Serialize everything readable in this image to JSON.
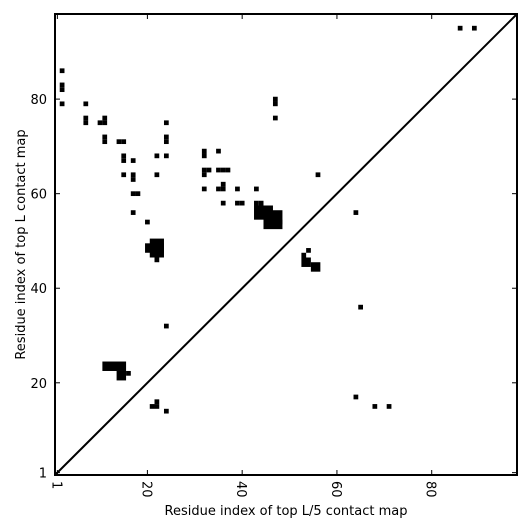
{
  "chart_data": {
    "type": "scatter",
    "title": "",
    "xlabel": "Residue index of top L/5 contact map",
    "ylabel": "Residue index of top L contact map",
    "xlim": [
      0.5,
      98
    ],
    "ylim": [
      0.5,
      98
    ],
    "xticks": [
      1,
      20,
      40,
      60,
      80
    ],
    "yticks": [
      1,
      20,
      40,
      60,
      80
    ],
    "grid": false,
    "legend": "none",
    "colors": {
      "marker": "#000000",
      "diagonal": "#000000",
      "frame": "#000000"
    },
    "diagonal_line": {
      "from": [
        0.5,
        0.5
      ],
      "to": [
        98,
        98
      ]
    },
    "upper_triangle_points": [
      [
        2,
        86
      ],
      [
        2,
        83
      ],
      [
        2,
        82
      ],
      [
        2,
        79
      ],
      [
        7,
        79
      ],
      [
        7,
        76
      ],
      [
        7,
        75
      ],
      [
        10,
        75
      ],
      [
        11,
        76
      ],
      [
        11,
        75
      ],
      [
        11,
        72
      ],
      [
        11,
        71
      ],
      [
        14,
        71
      ],
      [
        15,
        71
      ],
      [
        15,
        68
      ],
      [
        15,
        67
      ],
      [
        15,
        64
      ],
      [
        17,
        67
      ],
      [
        17,
        64
      ],
      [
        17,
        63
      ],
      [
        17,
        60
      ],
      [
        18,
        60
      ],
      [
        17,
        56
      ],
      [
        20,
        54
      ],
      [
        22,
        68
      ],
      [
        22,
        64
      ],
      [
        24,
        75
      ],
      [
        24,
        72
      ],
      [
        24,
        71
      ],
      [
        24,
        68
      ],
      [
        32,
        69
      ],
      [
        32,
        68
      ],
      [
        32,
        65
      ],
      [
        33,
        65
      ],
      [
        32,
        64
      ],
      [
        32,
        61
      ],
      [
        35,
        69
      ],
      [
        35,
        65
      ],
      [
        36,
        65
      ],
      [
        37,
        65
      ],
      [
        35,
        61
      ],
      [
        36,
        61
      ],
      [
        36,
        62
      ],
      [
        36,
        58
      ],
      [
        39,
        61
      ],
      [
        39,
        58
      ],
      [
        40,
        58
      ],
      [
        43,
        61
      ],
      [
        43,
        58
      ],
      [
        44,
        58
      ],
      [
        47,
        80
      ],
      [
        47,
        79
      ],
      [
        47,
        76
      ],
      [
        56,
        64
      ],
      [
        86,
        95
      ],
      [
        89,
        95
      ]
    ],
    "upper_triangle_blocks": [
      {
        "x": [
          43,
          46
        ],
        "y": [
          55,
          57
        ]
      },
      {
        "x": [
          45,
          48
        ],
        "y": [
          53,
          56
        ]
      },
      {
        "x": [
          46,
          48
        ],
        "y": [
          54,
          54
        ]
      },
      {
        "x": [
          20,
          23
        ],
        "y": [
          48,
          49
        ]
      },
      {
        "x": [
          21,
          23
        ],
        "y": [
          47,
          50
        ]
      },
      {
        "x": [
          22,
          22
        ],
        "y": [
          46,
          46
        ]
      }
    ],
    "lower_triangle_points": [
      [
        54,
        48
      ],
      [
        53,
        47
      ],
      [
        64,
        56
      ],
      [
        65,
        36
      ],
      [
        24,
        32
      ],
      [
        64,
        17
      ],
      [
        68,
        15
      ],
      [
        71,
        15
      ],
      [
        21,
        15
      ],
      [
        22,
        15
      ],
      [
        22,
        16
      ],
      [
        24,
        14
      ]
    ],
    "lower_triangle_blocks": [
      {
        "x": [
          53,
          54
        ],
        "y": [
          45,
          46
        ]
      },
      {
        "x": [
          55,
          56
        ],
        "y": [
          44,
          45
        ]
      },
      {
        "x": [
          11,
          15
        ],
        "y": [
          23,
          24
        ]
      },
      {
        "x": [
          14,
          15
        ],
        "y": [
          21,
          22
        ]
      },
      {
        "x": [
          16,
          16
        ],
        "y": [
          22,
          22
        ]
      }
    ]
  }
}
